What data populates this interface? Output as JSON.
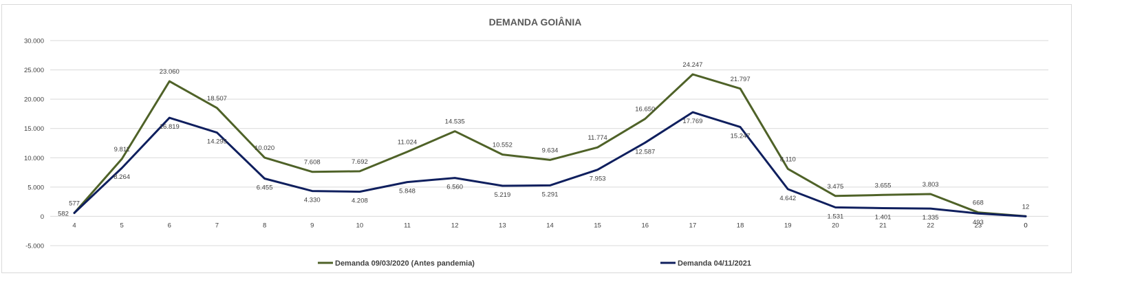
{
  "chart_data": {
    "type": "line",
    "title": "DEMANDA GOIÂNIA",
    "xlabel": "",
    "ylabel": "",
    "categories": [
      "4",
      "5",
      "6",
      "7",
      "8",
      "9",
      "10",
      "11",
      "12",
      "13",
      "14",
      "15",
      "16",
      "17",
      "18",
      "19",
      "20",
      "21",
      "22",
      "23",
      "0"
    ],
    "y_ticks": [
      "30.000",
      "25.000",
      "20.000",
      "15.000",
      "10.000",
      "5.000",
      "0",
      "-5.000"
    ],
    "ylim": [
      -5000,
      30000
    ],
    "grid": true,
    "legend_position": "bottom",
    "series": [
      {
        "name": "Demanda 09/03/2020 (Antes pandemia)",
        "color": "#4f6228",
        "values": [
          577,
          9811,
          23060,
          18507,
          10020,
          7608,
          7692,
          11024,
          14535,
          10552,
          9634,
          11774,
          16650,
          24247,
          21797,
          8110,
          3475,
          3655,
          3803,
          668,
          12
        ],
        "labels": [
          "577",
          "9.811",
          "23.060",
          "18.507",
          "10.020",
          "7.608",
          "7.692",
          "11.024",
          "14.535",
          "10.552",
          "9.634",
          "11.774",
          "16.650",
          "24.247",
          "21.797",
          "8.110",
          "3.475",
          "3.655",
          "3.803",
          "668",
          "12"
        ]
      },
      {
        "name": "Demanda 04/11/2021",
        "color": "#0f1f5e",
        "values": [
          582,
          8264,
          16819,
          14295,
          6455,
          4330,
          4208,
          5848,
          6560,
          5219,
          5291,
          7953,
          12587,
          17769,
          15247,
          4642,
          1531,
          1401,
          1335,
          493,
          0
        ],
        "labels": [
          "582",
          "8.264",
          "16.819",
          "14.295",
          "6.455",
          "4.330",
          "4.208",
          "5.848",
          "6.560",
          "5.219",
          "5.291",
          "7.953",
          "12.587",
          "17.769",
          "15.247",
          "4.642",
          "1.531",
          "1.401",
          "1.335",
          "493",
          "0"
        ]
      }
    ]
  }
}
